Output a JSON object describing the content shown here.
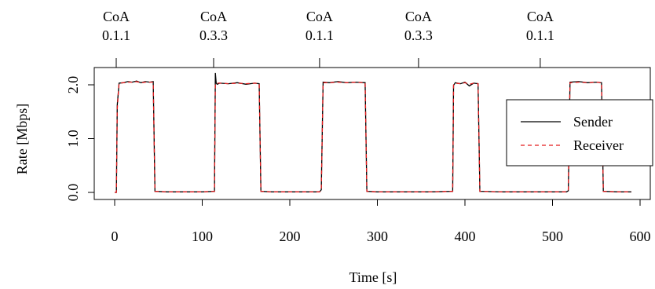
{
  "chart_data": {
    "type": "line",
    "title": "",
    "xlabel": "Time [s]",
    "ylabel": "Rate [Mbps]",
    "xlim": [
      0,
      592
    ],
    "ylim": [
      0,
      2.23
    ],
    "x_ticks": [
      0,
      100,
      200,
      300,
      400,
      500,
      600
    ],
    "x_tick_labels": [
      "0",
      "100",
      "200",
      "300",
      "400",
      "500",
      "600"
    ],
    "y_ticks": [
      0,
      1,
      2
    ],
    "y_tick_labels": [
      "0.0",
      "1.0",
      "2.0"
    ],
    "grid": false,
    "legend_position": "right",
    "top_axis": {
      "ticks": [
        0,
        113,
        234,
        347,
        486
      ],
      "labels": [
        {
          "line1": "CoA",
          "line2": "0.1.1"
        },
        {
          "line1": "CoA",
          "line2": "0.3.3"
        },
        {
          "line1": "CoA",
          "line2": "0.1.1"
        },
        {
          "line1": "CoA",
          "line2": "0.3.3"
        },
        {
          "line1": "CoA",
          "line2": "0.1.1"
        }
      ]
    },
    "on_periods": [
      {
        "start": 2,
        "end": 44
      },
      {
        "start": 115,
        "end": 165
      },
      {
        "start": 236,
        "end": 286
      },
      {
        "start": 387,
        "end": 415
      },
      {
        "start": 518,
        "end": 556
      }
    ],
    "series": [
      {
        "name": "Sender",
        "color": "#000000",
        "dash": "solid",
        "x": [
          0,
          2,
          3,
          5,
          10,
          15,
          20,
          25,
          30,
          35,
          40,
          44,
          46,
          60,
          80,
          100,
          114,
          115,
          116,
          117,
          120,
          130,
          140,
          150,
          160,
          165,
          167,
          180,
          200,
          220,
          234,
          236,
          238,
          245,
          255,
          265,
          275,
          286,
          288,
          300,
          330,
          360,
          386,
          387,
          389,
          395,
          400,
          405,
          410,
          415,
          417,
          440,
          480,
          516,
          518,
          520,
          530,
          540,
          550,
          556,
          558,
          575,
          590
        ],
        "y": [
          0,
          0,
          1.62,
          2.03,
          2.04,
          2.06,
          2.05,
          2.07,
          2.04,
          2.06,
          2.05,
          2.06,
          0.02,
          0.01,
          0.01,
          0.01,
          0.02,
          2.22,
          2.03,
          2.01,
          2.03,
          2.02,
          2.04,
          2.01,
          2.03,
          2.02,
          0.02,
          0.01,
          0.01,
          0.01,
          0.01,
          0.05,
          2.05,
          2.04,
          2.06,
          2.04,
          2.05,
          2.04,
          0.02,
          0.01,
          0.01,
          0.01,
          0.02,
          1.99,
          2.04,
          2.02,
          2.05,
          1.98,
          2.03,
          2.02,
          0.02,
          0.01,
          0.01,
          0.01,
          0.03,
          2.05,
          2.06,
          2.04,
          2.05,
          2.04,
          0.02,
          0.01,
          0.01
        ]
      },
      {
        "name": "Receiver",
        "color": "#e41a1c",
        "dash": "5,4",
        "x": [
          0,
          2,
          3,
          5,
          10,
          15,
          20,
          25,
          30,
          35,
          40,
          44,
          46,
          60,
          80,
          100,
          114,
          115,
          116,
          120,
          130,
          140,
          150,
          160,
          165,
          167,
          180,
          200,
          220,
          234,
          236,
          238,
          245,
          255,
          265,
          275,
          286,
          288,
          300,
          330,
          360,
          386,
          387,
          389,
          395,
          400,
          405,
          410,
          415,
          417,
          440,
          480,
          516,
          518,
          520,
          530,
          540,
          550,
          556,
          558,
          575,
          590
        ],
        "y": [
          0,
          0,
          1.55,
          2.03,
          2.04,
          2.05,
          2.05,
          2.06,
          2.04,
          2.05,
          2.05,
          2.05,
          0.02,
          0.01,
          0.01,
          0.01,
          0.02,
          2.02,
          2.03,
          2.03,
          2.02,
          2.03,
          2.02,
          2.03,
          2.02,
          0.02,
          0.01,
          0.01,
          0.01,
          0.01,
          0.05,
          2.04,
          2.04,
          2.05,
          2.04,
          2.05,
          2.04,
          0.02,
          0.01,
          0.01,
          0.01,
          0.02,
          2.0,
          2.03,
          2.02,
          2.04,
          2.01,
          2.03,
          2.02,
          0.02,
          0.01,
          0.01,
          0.01,
          0.03,
          2.04,
          2.05,
          2.04,
          2.05,
          2.04,
          0.02,
          0.01,
          0.01
        ]
      }
    ]
  }
}
